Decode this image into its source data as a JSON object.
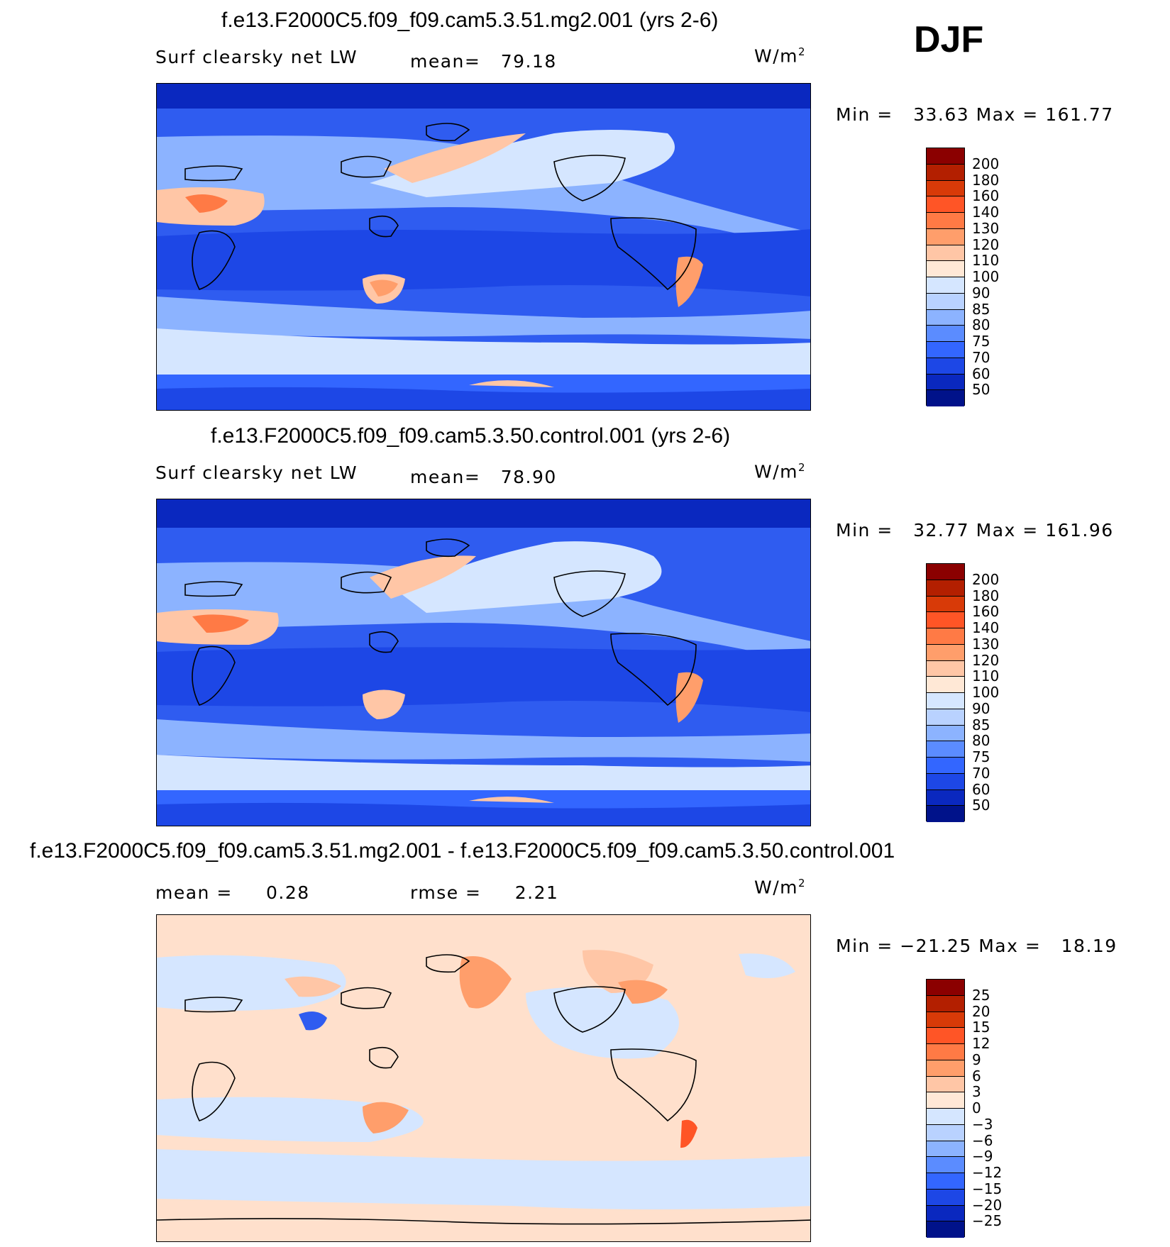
{
  "season": "DJF",
  "panels": [
    {
      "title": "f.e13.F2000C5.f09_f09.cam5.3.51.mg2.001 (yrs 2-6)",
      "variable": "Surf clearsky net LW",
      "mean_label": "mean=",
      "mean_value": "79.18",
      "units_base": "W/m",
      "units_exp": "2",
      "min_label": "Min =",
      "min_value": "33.63",
      "max_label": "Max =",
      "max_value": "161.77",
      "colorbar_ticks": [
        "200",
        "180",
        "160",
        "140",
        "130",
        "120",
        "110",
        "100",
        "90",
        "85",
        "80",
        "75",
        "70",
        "60",
        "50"
      ],
      "colorbar_colors": [
        "#8b0000",
        "#b31f00",
        "#d83a08",
        "#ff5526",
        "#ff7a45",
        "#ff9e6b",
        "#ffc6a6",
        "#ffe8d6",
        "#d5e6ff",
        "#b9d2ff",
        "#8cb3ff",
        "#5b8cff",
        "#3366ff",
        "#1d47e6",
        "#0a28bf",
        "#00128a"
      ]
    },
    {
      "title": "f.e13.F2000C5.f09_f09.cam5.3.50.control.001 (yrs 2-6)",
      "variable": "Surf clearsky net LW",
      "mean_label": "mean=",
      "mean_value": "78.90",
      "units_base": "W/m",
      "units_exp": "2",
      "min_label": "Min =",
      "min_value": "32.77",
      "max_label": "Max =",
      "max_value": "161.96",
      "colorbar_ticks": [
        "200",
        "180",
        "160",
        "140",
        "130",
        "120",
        "110",
        "100",
        "90",
        "85",
        "80",
        "75",
        "70",
        "60",
        "50"
      ],
      "colorbar_colors": [
        "#8b0000",
        "#b31f00",
        "#d83a08",
        "#ff5526",
        "#ff7a45",
        "#ff9e6b",
        "#ffc6a6",
        "#ffe8d6",
        "#d5e6ff",
        "#b9d2ff",
        "#8cb3ff",
        "#5b8cff",
        "#3366ff",
        "#1d47e6",
        "#0a28bf",
        "#00128a"
      ]
    },
    {
      "title": "f.e13.F2000C5.f09_f09.cam5.3.51.mg2.001 - f.e13.F2000C5.f09_f09.cam5.3.50.control.001",
      "mean_label": "mean =",
      "mean_value": "0.28",
      "rmse_label": "rmse =",
      "rmse_value": "2.21",
      "units_base": "W/m",
      "units_exp": "2",
      "min_label": "Min =",
      "min_value": "−21.25",
      "max_label": "Max =",
      "max_value": "18.19",
      "colorbar_ticks": [
        "25",
        "20",
        "15",
        "12",
        "9",
        "6",
        "3",
        "0",
        "−3",
        "−6",
        "−9",
        "−12",
        "−15",
        "−20",
        "−25"
      ],
      "colorbar_colors": [
        "#8b0000",
        "#b31f00",
        "#d83a08",
        "#ff5526",
        "#ff7a45",
        "#ff9e6b",
        "#ffc6a6",
        "#ffe8d6",
        "#d5e6ff",
        "#b9d2ff",
        "#8cb3ff",
        "#5b8cff",
        "#3366ff",
        "#1d47e6",
        "#0a28bf",
        "#00128a"
      ]
    }
  ],
  "map_palette": {
    "deep_blue": "#0a28bf",
    "mid_blue": "#2f5cf0",
    "light_blue": "#8cb3ff",
    "pale_blue": "#d5e6ff",
    "pale_orange": "#ffe0cc",
    "orange": "#ff9e6b",
    "red_orange": "#ff5526",
    "dark_navy": "#00128a",
    "coast": "#000000"
  }
}
